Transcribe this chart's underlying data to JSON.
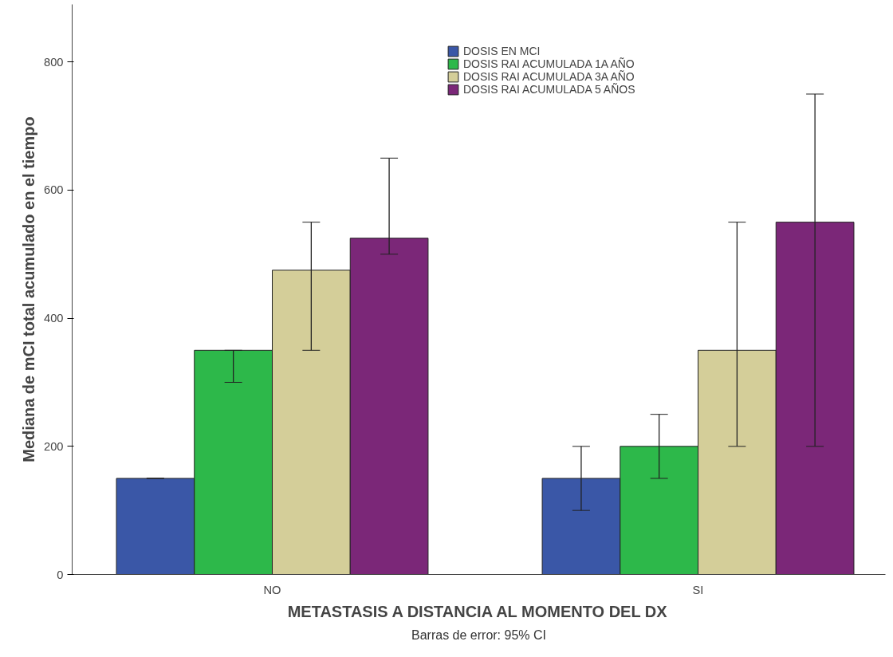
{
  "chart_data": {
    "type": "bar",
    "xlabel": "METASTASIS A DISTANCIA AL MOMENTO DEL DX",
    "ylabel": "Mediana de mCI total acumulado en el tiempo",
    "categories": [
      "NO",
      "SI"
    ],
    "series": [
      {
        "name": "DOSIS EN MCI",
        "color": "#3a57a7",
        "values": [
          150,
          150
        ],
        "errors": [
          [
            150,
            150
          ],
          [
            100,
            200
          ]
        ]
      },
      {
        "name": "DOSIS RAI ACUMULADA 1A AÑO",
        "color": "#2db84a",
        "values": [
          350,
          200
        ],
        "errors": [
          [
            300,
            350
          ],
          [
            150,
            250
          ]
        ]
      },
      {
        "name": "DOSIS RAI ACUMULADA 3A AÑO",
        "color": "#d4ce99",
        "values": [
          475,
          350
        ],
        "errors": [
          [
            350,
            550
          ],
          [
            200,
            550
          ]
        ]
      },
      {
        "name": "DOSIS RAI ACUMULADA 5 AÑOS",
        "color": "#7b2778",
        "values": [
          525,
          550
        ],
        "errors": [
          [
            500,
            650
          ],
          [
            200,
            750
          ]
        ]
      }
    ],
    "ylim": [
      0,
      890
    ],
    "yticks": [
      0,
      200,
      400,
      600,
      800
    ],
    "grid": false,
    "legend": "top",
    "annotations": [
      "Barras de error: 95% CI"
    ]
  }
}
